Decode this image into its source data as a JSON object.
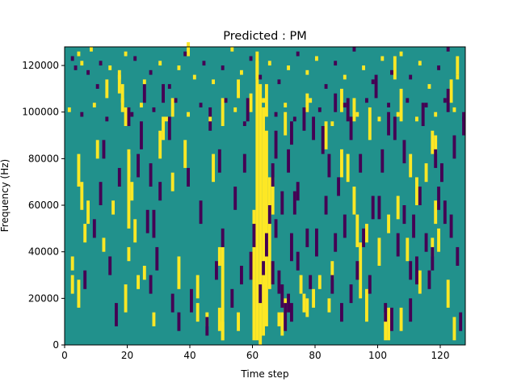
{
  "chart_data": {
    "type": "heatmap",
    "title": "Predicted : PM",
    "xlabel": "Time step",
    "ylabel": "Frequency (Hz)",
    "xlim": [
      0,
      128
    ],
    "ylim": [
      0,
      128000
    ],
    "xticks": [
      0,
      20,
      40,
      60,
      80,
      100,
      120
    ],
    "yticks": [
      0,
      20000,
      40000,
      60000,
      80000,
      100000,
      120000
    ],
    "grid": false,
    "legend": "none",
    "colors": {
      "background": "#21918c",
      "high": "#fde725",
      "low": "#440154"
    },
    "n_time_steps": 128,
    "n_freq_bins": 64,
    "segments_high": [
      [
        60,
        1,
        28,
        1
      ],
      [
        61,
        1,
        62,
        1
      ],
      [
        62,
        0,
        55,
        1
      ],
      [
        63,
        2,
        50,
        1
      ],
      [
        64,
        4,
        45,
        1
      ],
      [
        65,
        12,
        35,
        1
      ],
      [
        66,
        28,
        35,
        1
      ],
      [
        64,
        49,
        55,
        1
      ],
      [
        61,
        57,
        60,
        1
      ],
      [
        20,
        25,
        40,
        1
      ],
      [
        19,
        7,
        12,
        1
      ],
      [
        20,
        18,
        20,
        1
      ],
      [
        25,
        14,
        16,
        1
      ],
      [
        21,
        31,
        34,
        1
      ],
      [
        30,
        40,
        45,
        1
      ],
      [
        31,
        44,
        48,
        1
      ],
      [
        34,
        33,
        36,
        1
      ],
      [
        36,
        12,
        18,
        1
      ],
      [
        6,
        22,
        25,
        1
      ],
      [
        7,
        26,
        30,
        1
      ],
      [
        5,
        29,
        34,
        1
      ],
      [
        4,
        34,
        40,
        1
      ],
      [
        2,
        11,
        14,
        1
      ],
      [
        12,
        20,
        22,
        1
      ],
      [
        15,
        28,
        30,
        1
      ],
      [
        19,
        47,
        50,
        1
      ],
      [
        17,
        54,
        58,
        1
      ],
      [
        18,
        50,
        55,
        1
      ],
      [
        50,
        47,
        52,
        1
      ],
      [
        50,
        1,
        20,
        1
      ],
      [
        49,
        17,
        20,
        1
      ],
      [
        49,
        3,
        7,
        1
      ],
      [
        50,
        1,
        4,
        1
      ],
      [
        55,
        3,
        6,
        1
      ],
      [
        76,
        7,
        10,
        1
      ],
      [
        77,
        50,
        53,
        1
      ],
      [
        83,
        42,
        47,
        1
      ],
      [
        88,
        36,
        41,
        1
      ],
      [
        92,
        28,
        33,
        1
      ],
      [
        94,
        10,
        21,
        1
      ],
      [
        93,
        21,
        27,
        1
      ],
      [
        96,
        5,
        11,
        1
      ],
      [
        100,
        17,
        22,
        1
      ],
      [
        103,
        1,
        7,
        1
      ],
      [
        107,
        48,
        54,
        1
      ],
      [
        112,
        30,
        35,
        1
      ],
      [
        117,
        19,
        22,
        1
      ],
      [
        118,
        26,
        30,
        1
      ],
      [
        125,
        58,
        61,
        1
      ],
      [
        20,
        36,
        41,
        1
      ],
      [
        22,
        22,
        26,
        1
      ],
      [
        97,
        44,
        50,
        1
      ],
      [
        42,
        10,
        14,
        1
      ],
      [
        38,
        38,
        43,
        1
      ],
      [
        47,
        35,
        40,
        1
      ],
      [
        69,
        2,
        6,
        1
      ],
      [
        81,
        12,
        14,
        1
      ],
      [
        70,
        7,
        9,
        1
      ],
      [
        79,
        8,
        11,
        1
      ],
      [
        84,
        7,
        9,
        1
      ],
      [
        45,
        4,
        6,
        1
      ],
      [
        103,
        24,
        27,
        1
      ],
      [
        106,
        27,
        31,
        1
      ],
      [
        109,
        18,
        22,
        1
      ],
      [
        113,
        11,
        15,
        1
      ],
      [
        118,
        41,
        44,
        1
      ],
      [
        2,
        16,
        18,
        1
      ],
      [
        4,
        8,
        13,
        1
      ],
      [
        10,
        40,
        43,
        1
      ],
      [
        13,
        53,
        56,
        1
      ],
      [
        23,
        12,
        14,
        1
      ],
      [
        34,
        49,
        52,
        1
      ],
      [
        39,
        62,
        64,
        1
      ],
      [
        28,
        4,
        6,
        1
      ],
      [
        42,
        5,
        8,
        1
      ],
      [
        70,
        45,
        49,
        1
      ],
      [
        77,
        6,
        9,
        1
      ],
      [
        88,
        50,
        54,
        1
      ],
      [
        90,
        35,
        40,
        1
      ],
      [
        102,
        1,
        6,
        1
      ],
      [
        107,
        3,
        7,
        1
      ],
      [
        122,
        8,
        13,
        1
      ],
      [
        124,
        1,
        5,
        1
      ],
      [
        115,
        35,
        38,
        1
      ],
      [
        55,
        53,
        56,
        1
      ],
      [
        59,
        50,
        53,
        1
      ],
      [
        68,
        4,
        6,
        1
      ],
      [
        75,
        11,
        14,
        1
      ],
      [
        85,
        14,
        17,
        1
      ],
      [
        92,
        48,
        52,
        1
      ],
      [
        96,
        22,
        25,
        1
      ],
      [
        105,
        57,
        61,
        1
      ],
      [
        110,
        36,
        40,
        1
      ],
      [
        117,
        41,
        45,
        1
      ],
      [
        119,
        20,
        24,
        1
      ],
      [
        123,
        52,
        56,
        1
      ]
    ],
    "segments_low": [
      [
        56,
        13,
        16,
        -1
      ],
      [
        59,
        14,
        19,
        -1
      ],
      [
        60,
        21,
        25,
        -1
      ],
      [
        63,
        15,
        17,
        -1
      ],
      [
        66,
        34,
        38,
        -1
      ],
      [
        67,
        23,
        26,
        -1
      ],
      [
        68,
        11,
        15,
        -1
      ],
      [
        69,
        8,
        12,
        -1
      ],
      [
        70,
        3,
        8,
        -1
      ],
      [
        71,
        7,
        10,
        -1
      ],
      [
        72,
        5,
        8,
        -1
      ],
      [
        72,
        18,
        23,
        -1
      ],
      [
        73,
        28,
        32,
        -1
      ],
      [
        78,
        12,
        14,
        -1
      ],
      [
        80,
        19,
        24,
        -1
      ],
      [
        85,
        11,
        14,
        -1
      ],
      [
        86,
        20,
        23,
        -1
      ],
      [
        88,
        5,
        8,
        -1
      ],
      [
        93,
        14,
        17,
        -1
      ],
      [
        95,
        21,
        24,
        -1
      ],
      [
        98,
        27,
        31,
        -1
      ],
      [
        101,
        37,
        41,
        -1
      ],
      [
        102,
        5,
        8,
        -1
      ],
      [
        104,
        3,
        7,
        -1
      ],
      [
        108,
        26,
        29,
        -1
      ],
      [
        110,
        14,
        17,
        -1
      ],
      [
        112,
        13,
        18,
        -1
      ],
      [
        115,
        20,
        23,
        -1
      ],
      [
        118,
        38,
        41,
        -1
      ],
      [
        121,
        26,
        30,
        -1
      ],
      [
        123,
        23,
        27,
        -1
      ],
      [
        126,
        3,
        6,
        -1
      ],
      [
        12,
        40,
        43,
        -1
      ],
      [
        17,
        34,
        37,
        -1
      ],
      [
        20,
        47,
        50,
        -1
      ],
      [
        24,
        42,
        47,
        -1
      ],
      [
        25,
        52,
        55,
        -1
      ],
      [
        26,
        24,
        28,
        -1
      ],
      [
        27,
        11,
        14,
        -1
      ],
      [
        28,
        23,
        28,
        -1
      ],
      [
        29,
        16,
        20,
        -1
      ],
      [
        30,
        31,
        34,
        -1
      ],
      [
        31,
        52,
        55,
        -1
      ],
      [
        34,
        7,
        10,
        -1
      ],
      [
        36,
        3,
        6,
        -1
      ],
      [
        39,
        34,
        37,
        -1
      ],
      [
        40,
        7,
        11,
        -1
      ],
      [
        45,
        2,
        5,
        -1
      ],
      [
        46,
        46,
        50,
        -1
      ],
      [
        48,
        14,
        17,
        -1
      ],
      [
        50,
        21,
        24,
        -1
      ],
      [
        53,
        8,
        11,
        -1
      ],
      [
        57,
        37,
        40,
        -1
      ],
      [
        65,
        26,
        29,
        -1
      ],
      [
        67,
        40,
        45,
        -1
      ],
      [
        71,
        37,
        41,
        -1
      ],
      [
        74,
        16,
        19,
        -1
      ],
      [
        76,
        46,
        50,
        -1
      ],
      [
        79,
        44,
        48,
        -1
      ],
      [
        82,
        41,
        46,
        -1
      ],
      [
        84,
        36,
        40,
        -1
      ],
      [
        87,
        32,
        35,
        -1
      ],
      [
        90,
        48,
        52,
        -1
      ],
      [
        91,
        9,
        12,
        -1
      ],
      [
        99,
        53,
        57,
        -1
      ],
      [
        105,
        44,
        48,
        -1
      ],
      [
        110,
        5,
        9,
        -1
      ],
      [
        113,
        30,
        33,
        -1
      ],
      [
        116,
        12,
        15,
        -1
      ],
      [
        120,
        35,
        38,
        -1
      ],
      [
        122,
        50,
        54,
        -1
      ],
      [
        125,
        17,
        20,
        -1
      ],
      [
        6,
        12,
        15,
        -1
      ],
      [
        9,
        23,
        26,
        -1
      ],
      [
        11,
        30,
        34,
        -1
      ],
      [
        14,
        15,
        18,
        -1
      ],
      [
        16,
        4,
        8,
        -1
      ],
      [
        23,
        36,
        40,
        -1
      ],
      [
        27,
        34,
        38,
        -1
      ],
      [
        33,
        44,
        48,
        -1
      ],
      [
        43,
        26,
        30,
        -1
      ],
      [
        49,
        37,
        41,
        -1
      ],
      [
        54,
        29,
        33,
        -1
      ],
      [
        58,
        48,
        52,
        -1
      ],
      [
        62,
        9,
        12,
        -1
      ],
      [
        64,
        19,
        23,
        -1
      ],
      [
        66,
        13,
        17,
        -1
      ],
      [
        69,
        28,
        32,
        -1
      ],
      [
        72,
        43,
        47,
        -1
      ],
      [
        74,
        31,
        34,
        -1
      ],
      [
        77,
        21,
        24,
        -1
      ],
      [
        83,
        28,
        31,
        -1
      ],
      [
        86,
        50,
        53,
        -1
      ],
      [
        89,
        23,
        27,
        -1
      ],
      [
        91,
        44,
        48,
        -1
      ],
      [
        94,
        37,
        40,
        -1
      ],
      [
        97,
        11,
        14,
        -1
      ],
      [
        100,
        27,
        31,
        -1
      ],
      [
        103,
        45,
        49,
        -1
      ],
      [
        106,
        19,
        23,
        -1
      ],
      [
        108,
        39,
        43,
        -1
      ],
      [
        111,
        23,
        27,
        -1
      ],
      [
        114,
        47,
        51,
        -1
      ],
      [
        117,
        16,
        20,
        -1
      ],
      [
        119,
        29,
        33,
        -1
      ],
      [
        124,
        40,
        44,
        -1
      ],
      [
        127,
        45,
        49,
        -1
      ]
    ],
    "sparse_cells": [
      [
        2,
        61,
        -1
      ],
      [
        3,
        59,
        -1
      ],
      [
        4,
        62,
        1
      ],
      [
        5,
        60,
        1
      ],
      [
        7,
        58,
        -1
      ],
      [
        8,
        63,
        1
      ],
      [
        10,
        55,
        -1
      ],
      [
        11,
        60,
        -1
      ],
      [
        14,
        59,
        1
      ],
      [
        17,
        57,
        1
      ],
      [
        19,
        62,
        1
      ],
      [
        22,
        61,
        -1
      ],
      [
        25,
        56,
        1
      ],
      [
        27,
        58,
        -1
      ],
      [
        30,
        60,
        1
      ],
      [
        33,
        55,
        -1
      ],
      [
        36,
        59,
        1
      ],
      [
        38,
        62,
        -1
      ],
      [
        41,
        57,
        1
      ],
      [
        44,
        60,
        -1
      ],
      [
        47,
        56,
        1
      ],
      [
        50,
        59,
        -1
      ],
      [
        53,
        63,
        1
      ],
      [
        56,
        58,
        1
      ],
      [
        59,
        61,
        -1
      ],
      [
        62,
        57,
        -1
      ],
      [
        65,
        60,
        1
      ],
      [
        68,
        56,
        -1
      ],
      [
        71,
        59,
        1
      ],
      [
        74,
        62,
        -1
      ],
      [
        77,
        58,
        1
      ],
      [
        80,
        61,
        1
      ],
      [
        83,
        55,
        -1
      ],
      [
        86,
        60,
        -1
      ],
      [
        89,
        57,
        1
      ],
      [
        92,
        63,
        -1
      ],
      [
        95,
        59,
        1
      ],
      [
        98,
        56,
        -1
      ],
      [
        101,
        61,
        1
      ],
      [
        104,
        58,
        -1
      ],
      [
        107,
        62,
        1
      ],
      [
        110,
        57,
        -1
      ],
      [
        113,
        60,
        1
      ],
      [
        116,
        55,
        1
      ],
      [
        119,
        59,
        -1
      ],
      [
        122,
        63,
        -1
      ],
      [
        125,
        57,
        1
      ],
      [
        1,
        50,
        1
      ],
      [
        5,
        49,
        -1
      ],
      [
        9,
        51,
        1
      ],
      [
        13,
        48,
        -1
      ],
      [
        18,
        52,
        1
      ],
      [
        21,
        49,
        -1
      ],
      [
        24,
        51,
        1
      ],
      [
        28,
        50,
        -1
      ],
      [
        32,
        48,
        1
      ],
      [
        35,
        52,
        -1
      ],
      [
        39,
        49,
        1
      ],
      [
        43,
        51,
        -1
      ],
      [
        46,
        48,
        1
      ],
      [
        51,
        52,
        -1
      ],
      [
        54,
        50,
        1
      ],
      [
        57,
        47,
        -1
      ],
      [
        63,
        52,
        1
      ],
      [
        67,
        49,
        -1
      ],
      [
        70,
        51,
        1
      ],
      [
        73,
        48,
        -1
      ],
      [
        78,
        52,
        1
      ],
      [
        81,
        50,
        -1
      ],
      [
        85,
        47,
        1
      ],
      [
        89,
        51,
        -1
      ],
      [
        93,
        49,
        1
      ],
      [
        96,
        52,
        -1
      ],
      [
        100,
        48,
        1
      ],
      [
        103,
        51,
        -1
      ],
      [
        106,
        49,
        1
      ],
      [
        109,
        52,
        -1
      ],
      [
        112,
        48,
        1
      ],
      [
        115,
        51,
        -1
      ],
      [
        118,
        49,
        1
      ],
      [
        121,
        52,
        -1
      ],
      [
        124,
        50,
        1
      ],
      [
        127,
        48,
        -1
      ]
    ]
  }
}
